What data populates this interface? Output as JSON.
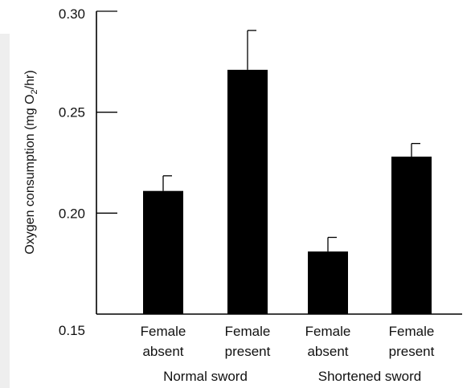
{
  "chart_data": {
    "type": "bar",
    "title": "",
    "ylabel": {
      "prefix": "Oxygen consumption (mg O",
      "subscript": "2",
      "suffix": "/hr)"
    },
    "ylim": [
      0.15,
      0.3
    ],
    "yticks": [
      {
        "value": 0.15,
        "label": "0.15"
      },
      {
        "value": 0.2,
        "label": "0.20"
      },
      {
        "value": 0.25,
        "label": "0.25"
      },
      {
        "value": 0.3,
        "label": "0.30"
      }
    ],
    "bars": [
      {
        "line1": "Female",
        "line2": "absent",
        "value": 0.211,
        "error": 0.0075
      },
      {
        "line1": "Female",
        "line2": "present",
        "value": 0.271,
        "error": 0.0195
      },
      {
        "line1": "Female",
        "line2": "absent",
        "value": 0.181,
        "error": 0.007
      },
      {
        "line1": "Female",
        "line2": "present",
        "value": 0.228,
        "error": 0.0065
      }
    ],
    "groups": [
      {
        "label": "Normal sword",
        "bars": [
          0,
          1
        ]
      },
      {
        "label": "Shortened sword",
        "bars": [
          2,
          3
        ]
      }
    ],
    "bar_color": "#000000",
    "grid": false
  }
}
